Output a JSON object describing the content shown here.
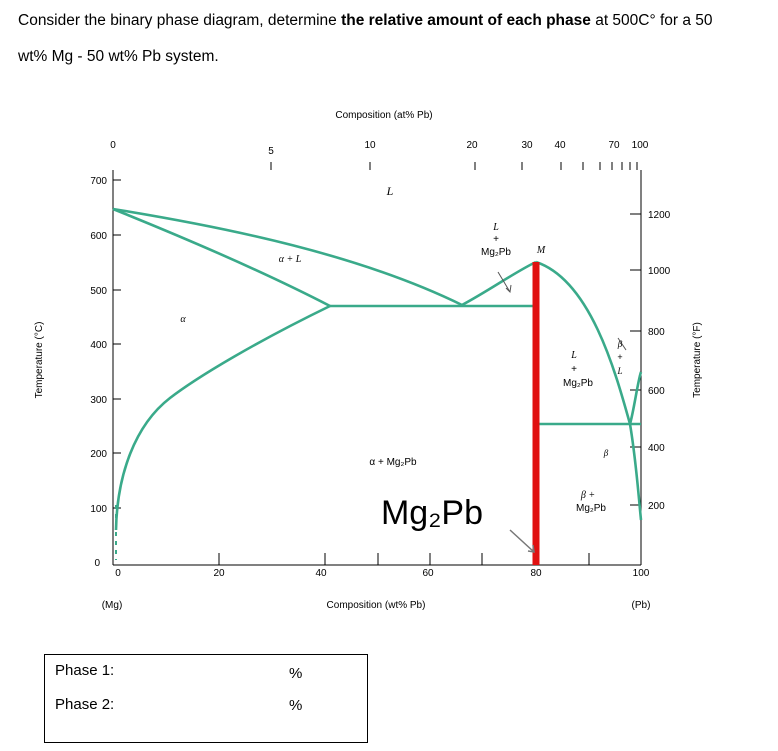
{
  "question": {
    "part1": "Consider the binary phase diagram, determine ",
    "bold": "the relative amount of each phase",
    "part2": " at 500C° for a 50",
    "line2": "wt% Mg - 50 wt% Pb system."
  },
  "diagram": {
    "top_axis_title": "Composition (at% Pb)",
    "top_ticks": [
      "0",
      "5",
      "10",
      "20",
      "30",
      "40",
      "70",
      "100"
    ],
    "bottom_axis_title": "Composition (wt% Pb)",
    "bottom_ticks": [
      "0",
      "20",
      "40",
      "60",
      "80",
      "100"
    ],
    "bottom_left_label": "(Mg)",
    "bottom_right_label": "(Pb)",
    "left_axis_title": "Temperature (°C)",
    "left_ticks": [
      "0",
      "100",
      "200",
      "300",
      "400",
      "500",
      "600",
      "700"
    ],
    "right_axis_title": "Temperature (°F)",
    "right_ticks": [
      "200",
      "400",
      "600",
      "800",
      "1000",
      "1200"
    ],
    "region_labels": {
      "L": "L",
      "alpha_L": "α + L",
      "alpha": "α",
      "L_Mg2Pb_top_L": "L",
      "L_Mg2Pb_top_plus": "+",
      "L_Mg2Pb_top_mg": "Mg₂Pb",
      "M": "M",
      "alpha_Mg2Pb": "α + Mg₂Pb",
      "right_L": "L",
      "right_plus": "+",
      "right_mg": "Mg₂Pb",
      "beta_L_1": "β",
      "beta_L_2": "+",
      "beta_L_3": "L",
      "beta": "β",
      "beta_mg_1": "β +",
      "beta_mg_2": "Mg₂Pb",
      "big_label": "Mg₂Pb"
    },
    "colors": {
      "curve": "#3aaa8a",
      "compound_line": "#e01010"
    }
  },
  "answers": {
    "phase1_label": "Phase 1:",
    "phase1_unit": "%",
    "phase2_label": "Phase 2:",
    "phase2_unit": "%"
  }
}
